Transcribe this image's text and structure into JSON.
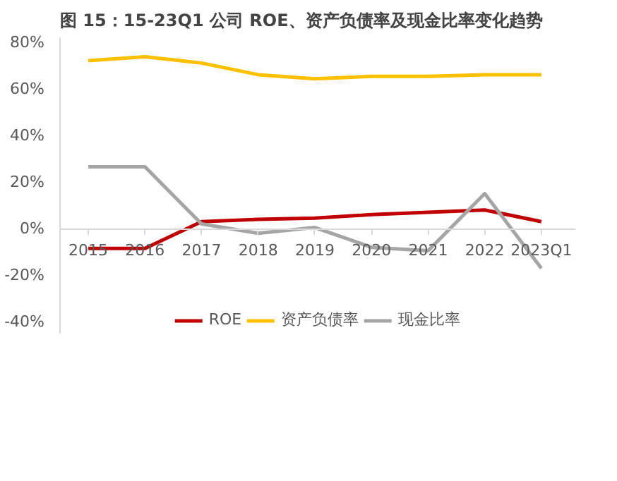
{
  "chart_data": {
    "type": "line",
    "title": "图 15：15-23Q1 公司 ROE、资产负债率及现金比率变化趋势",
    "categories": [
      "2015",
      "2016",
      "2017",
      "2018",
      "2019",
      "2020",
      "2021",
      "2022",
      "2023Q1"
    ],
    "series": [
      {
        "name": "ROE",
        "color": "#c00000",
        "values": [
          -8.5,
          -8.5,
          3,
          4,
          4.5,
          6,
          7,
          8,
          3
        ]
      },
      {
        "name": "资产负债率",
        "color": "#ffc000",
        "values": [
          72,
          73.7,
          71,
          66,
          64.2,
          65.3,
          65.3,
          66,
          66
        ]
      },
      {
        "name": "现金比率",
        "color": "#a5a5a5",
        "values": [
          26.5,
          26.5,
          2,
          -2,
          0.5,
          -8,
          -9.5,
          15,
          -17
        ]
      }
    ],
    "ylim": [
      -45,
      82
    ],
    "yticks": [
      {
        "value": -40,
        "label": "-40%"
      },
      {
        "value": -20,
        "label": "-20%"
      },
      {
        "value": 0,
        "label": "0%"
      },
      {
        "value": 20,
        "label": "20%"
      },
      {
        "value": 40,
        "label": "40%"
      },
      {
        "value": 60,
        "label": "60%"
      },
      {
        "value": 80,
        "label": "80%"
      }
    ],
    "grid": false,
    "legend": "bottom",
    "marker": "none",
    "line_style": "solid"
  }
}
